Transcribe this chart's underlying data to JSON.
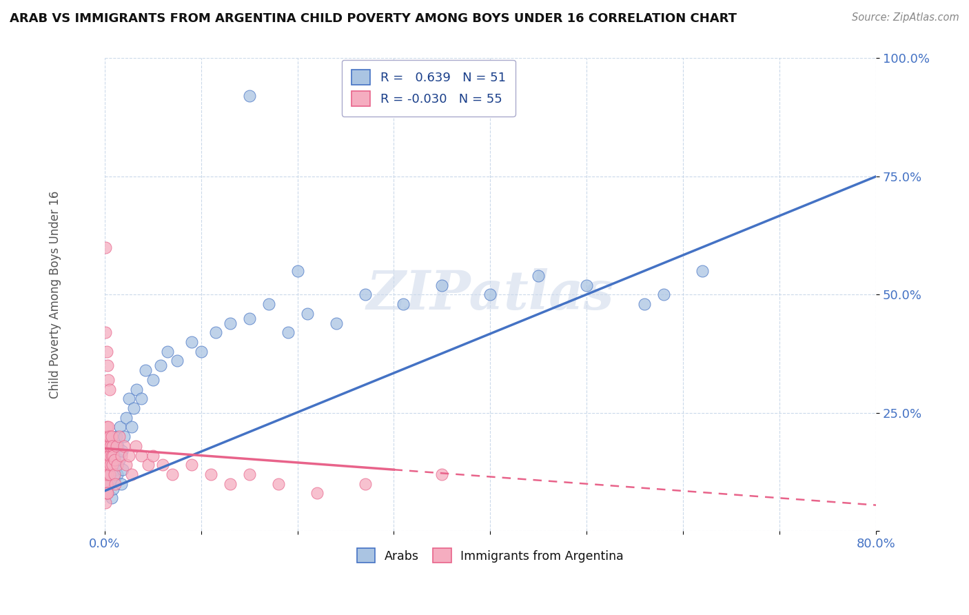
{
  "title": "ARAB VS IMMIGRANTS FROM ARGENTINA CHILD POVERTY AMONG BOYS UNDER 16 CORRELATION CHART",
  "source": "Source: ZipAtlas.com",
  "ylabel": "Child Poverty Among Boys Under 16",
  "xlim": [
    0.0,
    0.8
  ],
  "ylim": [
    0.0,
    1.0
  ],
  "xticks": [
    0.0,
    0.1,
    0.2,
    0.3,
    0.4,
    0.5,
    0.6,
    0.7,
    0.8
  ],
  "xticklabels": [
    "0.0%",
    "",
    "",
    "",
    "",
    "",
    "",
    "",
    "80.0%"
  ],
  "yticks": [
    0.0,
    0.25,
    0.5,
    0.75,
    1.0
  ],
  "yticklabels": [
    "",
    "25.0%",
    "50.0%",
    "75.0%",
    "100.0%"
  ],
  "legend_R_arab": "0.639",
  "legend_N_arab": "51",
  "legend_R_arg": "-0.030",
  "legend_N_arg": "55",
  "arab_color": "#aac4e2",
  "arg_color": "#f5adc0",
  "line_arab_color": "#4472c4",
  "line_arg_color": "#e8638a",
  "watermark": "ZIPatlas",
  "arab_x": [
    0.002,
    0.003,
    0.004,
    0.005,
    0.006,
    0.007,
    0.008,
    0.009,
    0.01,
    0.01,
    0.011,
    0.012,
    0.013,
    0.014,
    0.015,
    0.016,
    0.017,
    0.018,
    0.019,
    0.02,
    0.022,
    0.025,
    0.028,
    0.03,
    0.033,
    0.038,
    0.042,
    0.05,
    0.058,
    0.065,
    0.075,
    0.09,
    0.1,
    0.115,
    0.13,
    0.15,
    0.17,
    0.19,
    0.21,
    0.24,
    0.27,
    0.31,
    0.35,
    0.4,
    0.45,
    0.5,
    0.56,
    0.62,
    0.15,
    0.2,
    0.58
  ],
  "arab_y": [
    0.12,
    0.08,
    0.15,
    0.1,
    0.18,
    0.07,
    0.14,
    0.09,
    0.11,
    0.16,
    0.13,
    0.2,
    0.12,
    0.18,
    0.15,
    0.22,
    0.1,
    0.17,
    0.13,
    0.2,
    0.24,
    0.28,
    0.22,
    0.26,
    0.3,
    0.28,
    0.34,
    0.32,
    0.35,
    0.38,
    0.36,
    0.4,
    0.38,
    0.42,
    0.44,
    0.45,
    0.48,
    0.42,
    0.46,
    0.44,
    0.5,
    0.48,
    0.52,
    0.5,
    0.54,
    0.52,
    0.48,
    0.55,
    0.92,
    0.55,
    0.5
  ],
  "arg_x": [
    0.001,
    0.001,
    0.001,
    0.001,
    0.001,
    0.001,
    0.001,
    0.001,
    0.002,
    0.002,
    0.002,
    0.002,
    0.002,
    0.003,
    0.003,
    0.003,
    0.003,
    0.004,
    0.004,
    0.004,
    0.005,
    0.005,
    0.005,
    0.006,
    0.006,
    0.007,
    0.007,
    0.008,
    0.008,
    0.009,
    0.01,
    0.01,
    0.011,
    0.012,
    0.013,
    0.015,
    0.017,
    0.02,
    0.022,
    0.025,
    0.028,
    0.032,
    0.038,
    0.045,
    0.05,
    0.06,
    0.07,
    0.09,
    0.11,
    0.13,
    0.15,
    0.18,
    0.22,
    0.27,
    0.35
  ],
  "arg_y": [
    0.18,
    0.14,
    0.1,
    0.08,
    0.12,
    0.16,
    0.06,
    0.2,
    0.22,
    0.18,
    0.14,
    0.1,
    0.08,
    0.2,
    0.16,
    0.12,
    0.08,
    0.22,
    0.18,
    0.14,
    0.2,
    0.16,
    0.12,
    0.18,
    0.14,
    0.2,
    0.16,
    0.18,
    0.14,
    0.16,
    0.15,
    0.12,
    0.1,
    0.18,
    0.14,
    0.2,
    0.16,
    0.18,
    0.14,
    0.16,
    0.12,
    0.18,
    0.16,
    0.14,
    0.16,
    0.14,
    0.12,
    0.14,
    0.12,
    0.1,
    0.12,
    0.1,
    0.08,
    0.1,
    0.12
  ],
  "arg_extra_x": [
    0.001,
    0.001,
    0.002,
    0.003,
    0.004,
    0.005
  ],
  "arg_extra_y": [
    0.6,
    0.42,
    0.38,
    0.35,
    0.32,
    0.3
  ],
  "arab_line_start_x": 0.0,
  "arab_line_start_y": 0.085,
  "arab_line_end_x": 0.8,
  "arab_line_end_y": 0.75,
  "arg_line_start_x": 0.0,
  "arg_line_start_y": 0.175,
  "arg_line_end_x": 0.8,
  "arg_line_end_y": 0.055
}
